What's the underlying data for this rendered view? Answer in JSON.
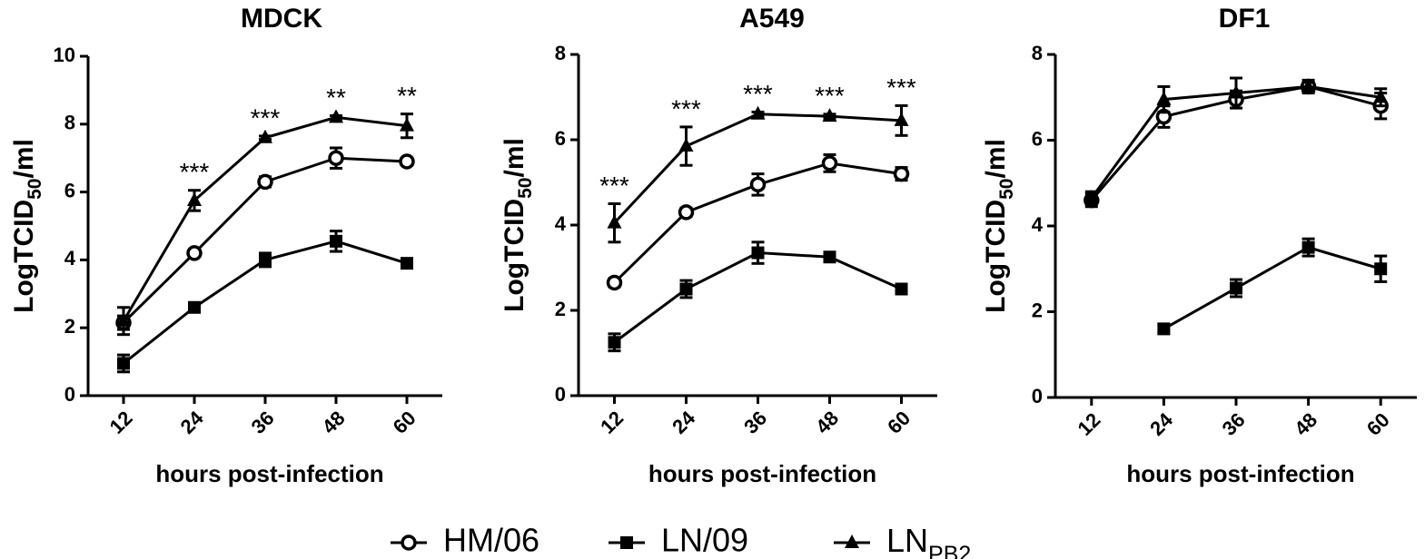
{
  "chart_data": [
    {
      "type": "line",
      "title": "MDCK",
      "xlabel": "hours post-infection",
      "ylabel": [
        "LogTCID",
        "50",
        "/ml"
      ],
      "x": [
        12,
        24,
        36,
        48,
        60
      ],
      "xlim": [
        6,
        66
      ],
      "xticks": [
        12,
        24,
        36,
        48,
        60
      ],
      "ylim": [
        0,
        10
      ],
      "yticks": [
        0,
        2,
        4,
        6,
        8,
        10
      ],
      "series": [
        {
          "marker": "open-circle",
          "color": "#000000",
          "values": [
            2.15,
            4.2,
            6.3,
            7.0,
            6.9
          ],
          "errors": [
            0.2,
            0.1,
            0.15,
            0.3,
            0.1
          ]
        },
        {
          "marker": "square",
          "color": "#000000",
          "values": [
            0.95,
            2.6,
            4.0,
            4.55,
            3.9
          ],
          "errors": [
            0.25,
            0.1,
            0.2,
            0.3,
            0.1
          ]
        },
        {
          "marker": "triangle",
          "color": "#000000",
          "values": [
            2.2,
            5.75,
            7.6,
            8.2,
            7.95
          ],
          "errors": [
            0.4,
            0.3,
            0.05,
            0.05,
            0.35
          ]
        }
      ],
      "annotations": [
        null,
        "***",
        "***",
        "**",
        "**"
      ]
    },
    {
      "type": "line",
      "title": "A549",
      "xlabel": "hours post-infection",
      "ylabel": [
        "LogTCID",
        "50",
        "/ml"
      ],
      "x": [
        12,
        24,
        36,
        48,
        60
      ],
      "xlim": [
        6,
        66
      ],
      "xticks": [
        12,
        24,
        36,
        48,
        60
      ],
      "ylim": [
        0,
        8
      ],
      "yticks": [
        0,
        2,
        4,
        6,
        8
      ],
      "series": [
        {
          "marker": "open-circle",
          "color": "#000000",
          "values": [
            2.65,
            4.3,
            4.95,
            5.45,
            5.2
          ],
          "errors": [
            0.1,
            0.1,
            0.25,
            0.2,
            0.15
          ]
        },
        {
          "marker": "square",
          "color": "#000000",
          "values": [
            1.25,
            2.5,
            3.35,
            3.25,
            2.5
          ],
          "errors": [
            0.2,
            0.2,
            0.25,
            0.1,
            0.1
          ]
        },
        {
          "marker": "triangle",
          "color": "#000000",
          "values": [
            4.05,
            5.85,
            6.6,
            6.55,
            6.45
          ],
          "errors": [
            0.45,
            0.45,
            0.05,
            0.05,
            0.35
          ]
        }
      ],
      "annotations": [
        "***",
        "***",
        "***",
        "***",
        "***"
      ]
    },
    {
      "type": "line",
      "title": "DF1",
      "xlabel": "hours post-infection",
      "ylabel": [
        "LogTCID",
        "50",
        "/ml"
      ],
      "x": [
        12,
        24,
        36,
        48,
        60
      ],
      "xlim": [
        6,
        66
      ],
      "xticks": [
        12,
        24,
        36,
        48,
        60
      ],
      "ylim": [
        0,
        8
      ],
      "yticks": [
        0,
        2,
        4,
        6,
        8
      ],
      "series": [
        {
          "marker": "open-circle",
          "color": "#000000",
          "values": [
            4.6,
            6.55,
            6.95,
            7.25,
            6.8
          ],
          "errors": [
            0.15,
            0.25,
            0.2,
            0.15,
            0.3
          ]
        },
        {
          "marker": "square",
          "color": "#000000",
          "values": [
            null,
            1.6,
            2.55,
            3.5,
            3.0
          ],
          "errors": [
            null,
            0.1,
            0.2,
            0.2,
            0.3
          ]
        },
        {
          "marker": "triangle",
          "color": "#000000",
          "values": [
            4.65,
            6.95,
            7.1,
            7.25,
            7.0
          ],
          "errors": [
            0.15,
            0.3,
            0.35,
            0.1,
            0.2
          ]
        }
      ],
      "annotations": [
        null,
        null,
        null,
        null,
        null
      ]
    }
  ],
  "legend": [
    "HM/06",
    "LN/09",
    [
      "LN",
      "PB2"
    ]
  ]
}
